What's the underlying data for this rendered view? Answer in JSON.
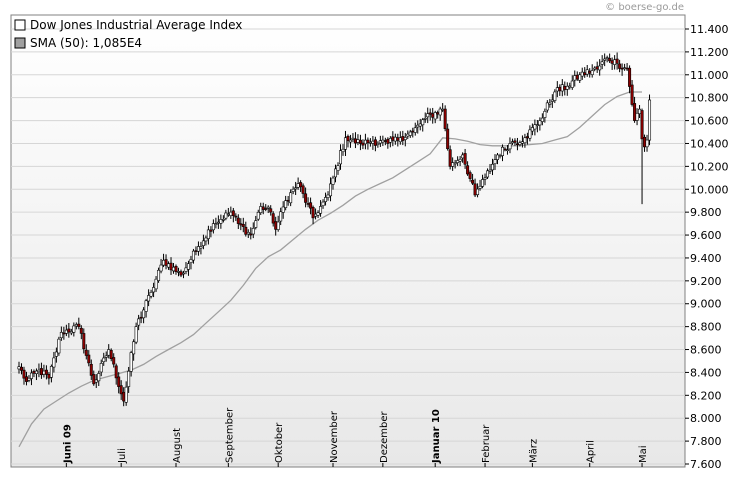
{
  "copyright": "© boerse-go.de",
  "chart_data": {
    "type": "candlestick",
    "title": "",
    "xlabel": "",
    "ylabel": "",
    "legend_position": "top-left",
    "legend": [
      {
        "label": "Dow Jones Industrial Average Index",
        "swatch_color": "#ffffff"
      },
      {
        "label": "SMA (50): 1,085E4",
        "swatch_color": "#a0a0a0"
      }
    ],
    "ylim": [
      7600,
      11500
    ],
    "y_ticks": [
      7600,
      7800,
      8000,
      8200,
      8400,
      8600,
      8800,
      9000,
      9200,
      9400,
      9600,
      9800,
      10000,
      10200,
      10400,
      10600,
      10800,
      11000,
      11200,
      11400
    ],
    "y_tick_labels": [
      "7.600",
      "7.800",
      "8.000",
      "8.200",
      "8.400",
      "8.600",
      "8.800",
      "9.000",
      "9.200",
      "9.400",
      "9.600",
      "9.800",
      "10.000",
      "10.200",
      "10.400",
      "10.600",
      "10.800",
      "11.000",
      "11.200",
      "11.400"
    ],
    "y_axis_side": "right",
    "x_axis_type": "trading-day index",
    "x_range": [
      0,
      256
    ],
    "month_ticks": [
      {
        "label": "Juni 09",
        "day": 19,
        "bold": true
      },
      {
        "label": "Juli",
        "day": 41,
        "bold": false
      },
      {
        "label": "August",
        "day": 63,
        "bold": false
      },
      {
        "label": "September",
        "day": 84,
        "bold": false
      },
      {
        "label": "Oktober",
        "day": 104,
        "bold": false
      },
      {
        "label": "November",
        "day": 126,
        "bold": false
      },
      {
        "label": "Dezember",
        "day": 146,
        "bold": false
      },
      {
        "label": "Januar 10",
        "day": 167,
        "bold": true
      },
      {
        "label": "Februar",
        "day": 187,
        "bold": false
      },
      {
        "label": "März",
        "day": 206,
        "bold": false
      },
      {
        "label": "April",
        "day": 229,
        "bold": false
      },
      {
        "label": "Mai",
        "day": 250,
        "bold": false
      }
    ],
    "series": [
      {
        "name": "Dow Jones Industrial Average Index",
        "kind": "ohlc-candles",
        "up_color": "#ffffff",
        "down_color": "#8b0000",
        "anchor_days": [
          0,
          3,
          8,
          12,
          17,
          24,
          30,
          36,
          42,
          47,
          53,
          58,
          65,
          72,
          78,
          85,
          88,
          93,
          97,
          101,
          103,
          107,
          112,
          118,
          121,
          124,
          131,
          137,
          142,
          148,
          153,
          158,
          163,
          170,
          173,
          178,
          183,
          187,
          192,
          197,
          203,
          209,
          215,
          220,
          225,
          232,
          236,
          240,
          244,
          247,
          249,
          250,
          251,
          252,
          253
        ],
        "anchor_closes": [
          8450,
          8320,
          8420,
          8350,
          8750,
          8800,
          8300,
          8600,
          8150,
          8800,
          9100,
          9380,
          9250,
          9500,
          9700,
          9800,
          9700,
          9600,
          9850,
          9800,
          9650,
          9900,
          10050,
          9750,
          9850,
          9950,
          10450,
          10400,
          10420,
          10400,
          10450,
          10500,
          10620,
          10700,
          10200,
          10300,
          9950,
          10100,
          10300,
          10400,
          10450,
          10600,
          10850,
          10900,
          11000,
          11050,
          11150,
          11100,
          11050,
          10600,
          10700,
          10440,
          10370,
          10430,
          10780
        ],
        "notable_lows": [
          {
            "day": 250,
            "low": 9870
          }
        ]
      },
      {
        "name": "SMA (50)",
        "kind": "line",
        "color": "#a0a0a0",
        "days": [
          0,
          5,
          10,
          15,
          20,
          25,
          30,
          35,
          40,
          45,
          50,
          55,
          60,
          65,
          70,
          75,
          80,
          85,
          90,
          95,
          100,
          105,
          110,
          115,
          120,
          125,
          130,
          135,
          140,
          145,
          150,
          155,
          160,
          165,
          170,
          175,
          180,
          185,
          190,
          195,
          200,
          205,
          210,
          215,
          220,
          225,
          230,
          235,
          240,
          245,
          250
        ],
        "values": [
          7750,
          7950,
          8080,
          8150,
          8220,
          8280,
          8330,
          8360,
          8390,
          8420,
          8470,
          8540,
          8600,
          8660,
          8730,
          8830,
          8930,
          9030,
          9160,
          9310,
          9410,
          9470,
          9560,
          9650,
          9730,
          9790,
          9860,
          9940,
          10000,
          10050,
          10100,
          10170,
          10240,
          10310,
          10450,
          10440,
          10420,
          10390,
          10380,
          10380,
          10380,
          10390,
          10400,
          10430,
          10460,
          10540,
          10640,
          10740,
          10810,
          10850,
          10850
        ]
      }
    ]
  }
}
